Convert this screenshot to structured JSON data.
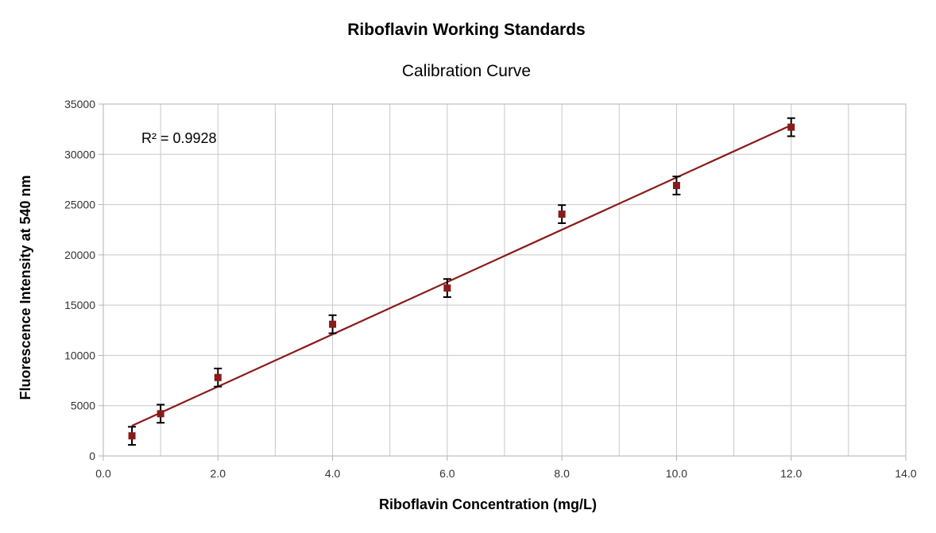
{
  "chart_data": {
    "type": "scatter",
    "title": "Riboflavin Working Standards",
    "subtitle": "Calibration Curve",
    "xlabel": "Riboflavin Concentration (mg/L)",
    "ylabel": "Fluorescence Intensity at 540 nm",
    "xlim": [
      0,
      14
    ],
    "ylim": [
      0,
      35000
    ],
    "x_ticks": [
      "0.0",
      "2.0",
      "4.0",
      "6.0",
      "8.0",
      "10.0",
      "12.0",
      "14.0"
    ],
    "y_ticks": [
      "0",
      "5000",
      "10000",
      "15000",
      "20000",
      "25000",
      "30000",
      "35000"
    ],
    "x_grid_step": 1,
    "grid": true,
    "legend": "none",
    "points": [
      {
        "x": 0.5,
        "y": 2000,
        "err": 900
      },
      {
        "x": 1.0,
        "y": 4200,
        "err": 900
      },
      {
        "x": 2.0,
        "y": 7800,
        "err": 900
      },
      {
        "x": 4.0,
        "y": 13100,
        "err": 900
      },
      {
        "x": 6.0,
        "y": 16700,
        "err": 900
      },
      {
        "x": 8.0,
        "y": 24050,
        "err": 900
      },
      {
        "x": 10.0,
        "y": 26900,
        "err": 900
      },
      {
        "x": 12.0,
        "y": 32700,
        "err": 900
      }
    ],
    "trendline": {
      "type": "linear",
      "x": [
        0.5,
        12.0
      ],
      "y": [
        3000,
        32900
      ],
      "color": "#8b1a1a"
    },
    "marker_color": "#8b1a1a",
    "errorbar_color": "#000000",
    "annotation": "R² = 0.9928"
  }
}
